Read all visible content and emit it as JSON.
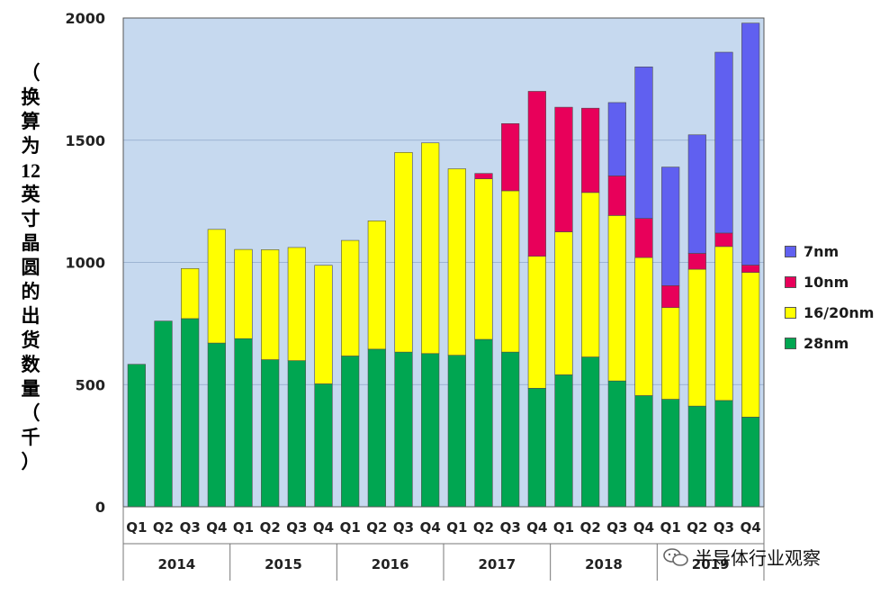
{
  "chart_data": {
    "type": "bar",
    "stacked": true,
    "ylabel": "（换算为12英寸晶圆的出货数量（千）",
    "ylim": [
      0,
      2000
    ],
    "yticks": [
      0,
      500,
      1000,
      1500,
      2000
    ],
    "ytick_labels": [
      "0",
      "500",
      "1000",
      "1500",
      "2000"
    ],
    "categories": [
      "Q1",
      "Q2",
      "Q3",
      "Q4",
      "Q1",
      "Q2",
      "Q3",
      "Q4",
      "Q1",
      "Q2",
      "Q3",
      "Q4",
      "Q1",
      "Q2",
      "Q3",
      "Q4",
      "Q1",
      "Q2",
      "Q3",
      "Q4",
      "Q1",
      "Q2",
      "Q3",
      "Q4"
    ],
    "years": [
      "2014",
      "2015",
      "2016",
      "2017",
      "2018",
      "2019"
    ],
    "series": [
      {
        "name": "28nm",
        "color": "#00A651",
        "values": [
          583,
          760,
          770,
          670,
          688,
          602,
          598,
          503,
          617,
          645,
          633,
          627,
          620,
          685,
          633,
          485,
          540,
          613,
          515,
          455,
          440,
          412,
          435,
          367
        ]
      },
      {
        "name": "16/20nm",
        "color": "#FFFF00",
        "values": [
          0,
          0,
          205,
          465,
          365,
          450,
          463,
          485,
          473,
          525,
          817,
          862,
          763,
          657,
          660,
          540,
          585,
          673,
          677,
          565,
          375,
          560,
          630,
          592
        ]
      },
      {
        "name": "10nm",
        "color": "#E8005A",
        "values": [
          0,
          0,
          0,
          0,
          0,
          0,
          0,
          0,
          0,
          0,
          0,
          0,
          0,
          22,
          275,
          675,
          510,
          345,
          162,
          160,
          90,
          65,
          55,
          30
        ]
      },
      {
        "name": "7nm",
        "color": "#6060F0",
        "values": [
          0,
          0,
          0,
          0,
          0,
          0,
          0,
          0,
          0,
          0,
          0,
          0,
          0,
          0,
          0,
          0,
          0,
          0,
          300,
          620,
          485,
          485,
          740,
          990
        ]
      }
    ],
    "legend_order": [
      "7nm",
      "10nm",
      "16/20nm",
      "28nm"
    ],
    "legend_position": "right"
  },
  "ylabel_chars": [
    "（",
    "换",
    "算",
    "为",
    "12",
    "英",
    "寸",
    "晶",
    "圆",
    "的",
    "出",
    "货",
    "数",
    "量",
    "（",
    "千",
    "）"
  ],
  "legend": [
    {
      "label": "7nm",
      "color": "#6060F0"
    },
    {
      "label": "10nm",
      "color": "#E8005A"
    },
    {
      "label": "16/20nm",
      "color": "#FFFF00"
    },
    {
      "label": "28nm",
      "color": "#00A651"
    }
  ],
  "watermark": {
    "text": "半导体行业观察"
  }
}
